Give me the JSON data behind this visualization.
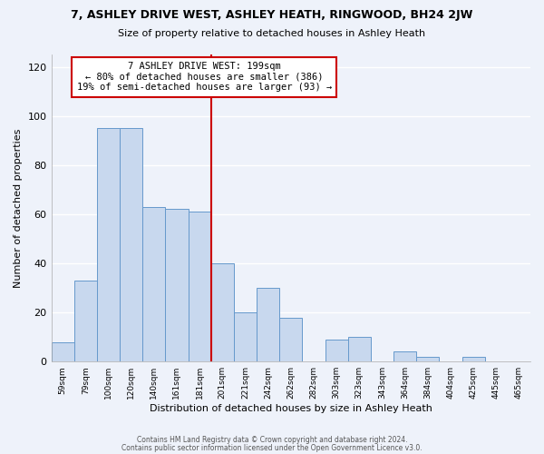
{
  "title": "7, ASHLEY DRIVE WEST, ASHLEY HEATH, RINGWOOD, BH24 2JW",
  "subtitle": "Size of property relative to detached houses in Ashley Heath",
  "xlabel": "Distribution of detached houses by size in Ashley Heath",
  "ylabel": "Number of detached properties",
  "bar_color": "#c8d8ee",
  "bar_edge_color": "#6699cc",
  "background_color": "#eef2fa",
  "grid_color": "#ffffff",
  "bin_labels": [
    "59sqm",
    "79sqm",
    "100sqm",
    "120sqm",
    "140sqm",
    "161sqm",
    "181sqm",
    "201sqm",
    "221sqm",
    "242sqm",
    "262sqm",
    "282sqm",
    "303sqm",
    "323sqm",
    "343sqm",
    "364sqm",
    "384sqm",
    "404sqm",
    "425sqm",
    "445sqm",
    "465sqm"
  ],
  "bar_values": [
    8,
    33,
    95,
    95,
    63,
    62,
    61,
    40,
    20,
    30,
    18,
    0,
    9,
    10,
    0,
    4,
    2,
    0,
    2,
    0,
    0
  ],
  "vline_bin_index": 7,
  "annotation_title": "7 ASHLEY DRIVE WEST: 199sqm",
  "annotation_line1": "← 80% of detached houses are smaller (386)",
  "annotation_line2": "19% of semi-detached houses are larger (93) →",
  "annotation_box_color": "#ffffff",
  "annotation_border_color": "#cc0000",
  "vline_color": "#cc0000",
  "ylim": [
    0,
    125
  ],
  "yticks": [
    0,
    20,
    40,
    60,
    80,
    100,
    120
  ],
  "footer1": "Contains HM Land Registry data © Crown copyright and database right 2024.",
  "footer2": "Contains public sector information licensed under the Open Government Licence v3.0."
}
